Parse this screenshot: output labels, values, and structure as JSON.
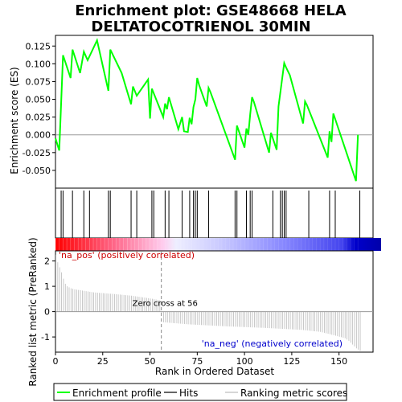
{
  "chart_data": {
    "type": "line",
    "title_line1": "Enrichment plot: GSE48668 HELA",
    "title_line2": "DELTATOCOTRIENOL 30MIN",
    "top_panel": {
      "ylabel": "Enrichment score (ES)",
      "ylim": [
        -0.075,
        0.14
      ],
      "yticks": [
        -0.05,
        -0.025,
        0.0,
        0.025,
        0.05,
        0.075,
        0.1,
        0.125
      ],
      "ytick_labels": [
        "-0.050",
        "-0.025",
        "0.000",
        "0.025",
        "0.050",
        "0.075",
        "0.100",
        "0.125"
      ],
      "series_name": "Enrichment profile",
      "color": "#00ff00",
      "x": [
        0,
        2,
        4,
        8,
        9,
        13,
        15,
        17,
        22,
        28,
        29,
        35,
        40,
        41,
        43,
        49,
        50,
        51,
        54,
        57,
        58,
        59,
        60,
        65,
        67,
        68,
        70,
        71,
        72,
        73,
        74,
        75,
        76,
        80,
        81,
        82,
        95,
        96,
        100,
        101,
        102,
        103,
        104,
        105,
        113,
        114,
        117,
        118,
        121,
        122,
        124,
        131,
        132,
        133,
        144,
        145,
        146,
        147,
        159,
        160
      ],
      "y": [
        -0.005,
        -0.022,
        0.112,
        0.08,
        0.12,
        0.087,
        0.117,
        0.105,
        0.133,
        0.062,
        0.12,
        0.087,
        0.043,
        0.068,
        0.055,
        0.078,
        0.023,
        0.065,
        0.045,
        0.025,
        0.044,
        0.036,
        0.053,
        0.008,
        0.025,
        0.005,
        0.004,
        0.024,
        0.015,
        0.039,
        0.05,
        0.08,
        0.07,
        0.04,
        0.066,
        0.06,
        -0.035,
        0.013,
        -0.018,
        0.009,
        0.0,
        0.029,
        0.053,
        0.046,
        -0.025,
        0.003,
        -0.021,
        0.04,
        0.101,
        0.095,
        0.084,
        0.016,
        0.047,
        0.042,
        -0.032,
        0.005,
        -0.01,
        0.03,
        -0.065,
        0.0
      ]
    },
    "hits": [
      3,
      4,
      9,
      15,
      18,
      28,
      29,
      40,
      43,
      51,
      52,
      58,
      60,
      67,
      71,
      73,
      74,
      75,
      81,
      95,
      96,
      101,
      103,
      104,
      115,
      119,
      120,
      121,
      122,
      134,
      145,
      148,
      161
    ],
    "bottom_panel": {
      "ylabel": "Ranked list metric (PreRanked)",
      "xlabel": "Rank in Ordered Dataset",
      "ylim": [
        -1.6,
        2.4
      ],
      "yticks": [
        -1,
        0,
        1,
        2
      ],
      "ytick_labels": [
        "-1",
        "0",
        "1",
        "2"
      ],
      "xlim": [
        0,
        168
      ],
      "xticks": [
        0,
        25,
        50,
        75,
        100,
        125,
        150
      ],
      "xtick_labels": [
        "0",
        "25",
        "50",
        "75",
        "100",
        "125",
        "150"
      ],
      "zero_cross": 56,
      "zero_cross_label": "Zero cross at 56",
      "pos_label": "'na_pos' (positively correlated)",
      "neg_label": "'na_neg' (negatively correlated)",
      "pos_color": "#cc0000",
      "neg_color": "#0000cc",
      "n_genes": 162,
      "metric_anchors": {
        "rank": [
          0,
          1,
          2,
          3,
          4,
          5,
          6,
          8,
          10,
          15,
          20,
          30,
          40,
          50,
          55,
          56,
          57,
          70,
          90,
          110,
          130,
          140,
          148,
          153,
          155,
          157,
          159,
          161
        ],
        "value": [
          2.25,
          1.95,
          1.75,
          1.55,
          1.3,
          1.1,
          1.0,
          0.92,
          0.88,
          0.82,
          0.76,
          0.7,
          0.63,
          0.52,
          0.45,
          -0.05,
          -0.42,
          -0.5,
          -0.58,
          -0.64,
          -0.72,
          -0.8,
          -0.95,
          -1.05,
          -1.15,
          -1.3,
          -1.45,
          -1.55
        ]
      }
    },
    "legend": [
      {
        "name": "Enrichment profile",
        "color": "#00ff00",
        "style": "line"
      },
      {
        "name": "Hits",
        "color": "#000000",
        "style": "line"
      },
      {
        "name": "Ranking metric scores",
        "color": "#bbbbbb",
        "style": "line"
      }
    ]
  }
}
